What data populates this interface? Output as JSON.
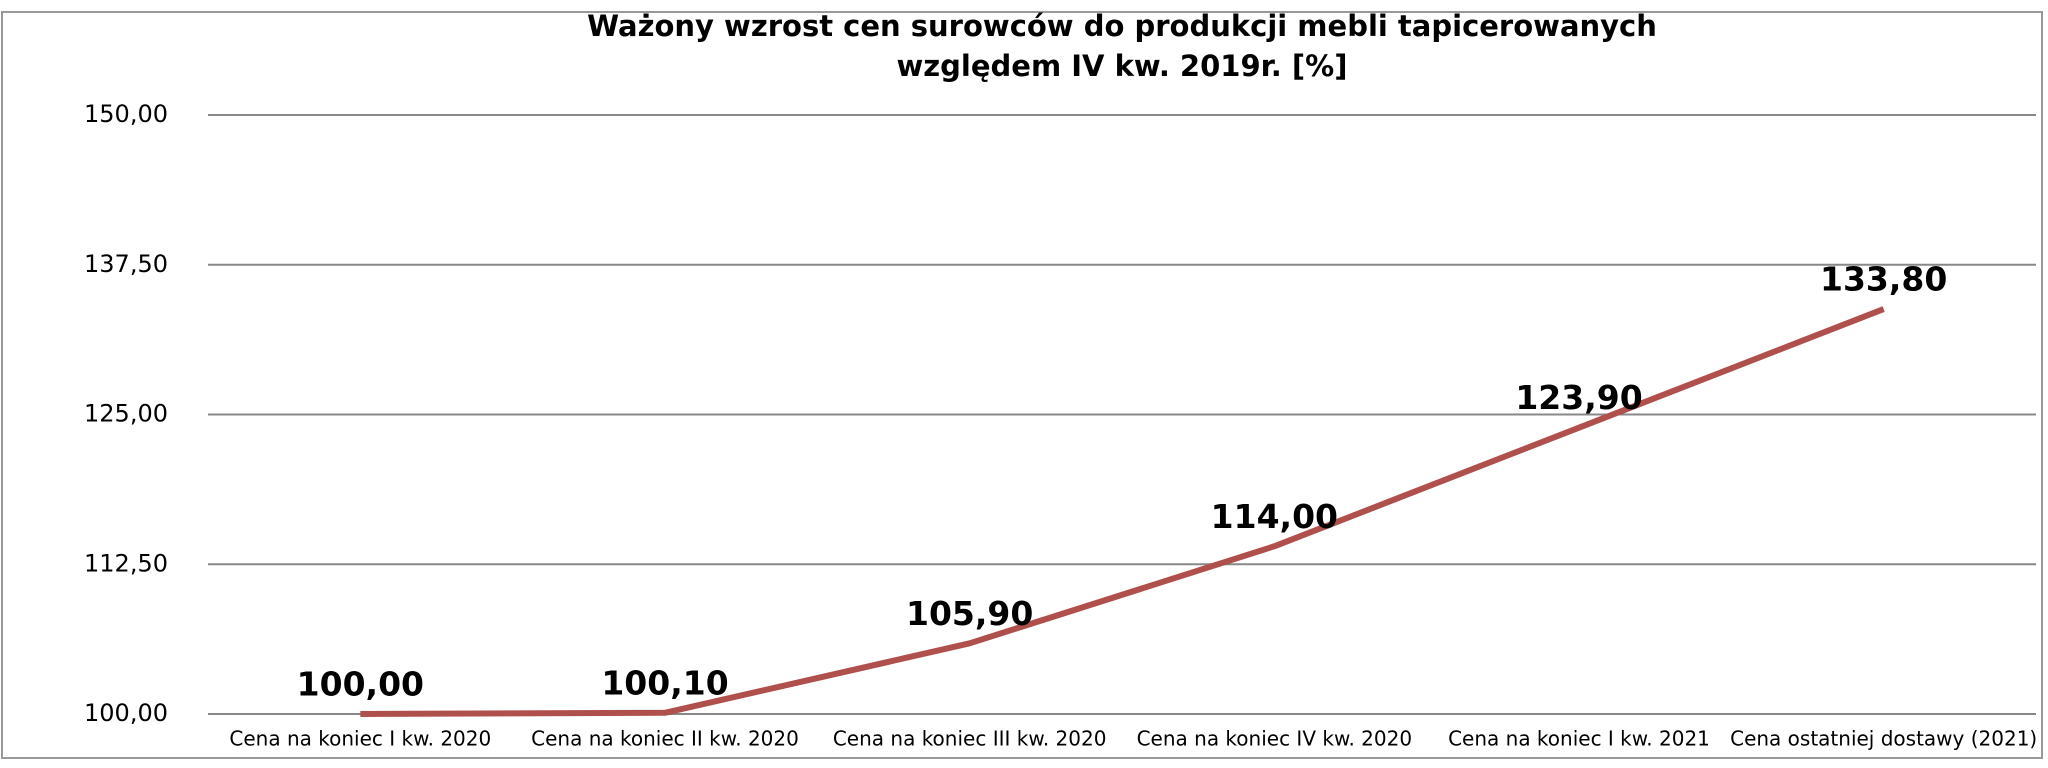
{
  "chart_data": {
    "type": "line",
    "title": "Ważony wzrost cen surowców do produkcji mebli tapicerowanych względem IV kw. 2019r. [%]",
    "categories": [
      "Cena na koniec I kw. 2020",
      "Cena na koniec II kw. 2020",
      "Cena na koniec III kw. 2020",
      "Cena na koniec IV kw. 2020",
      "Cena na koniec I kw. 2021",
      "Cena ostatniej dostawy (2021)"
    ],
    "series": [
      {
        "color": "#b0504d",
        "values": [
          100,
          100.1,
          105.9,
          114,
          123.9,
          133.8
        ],
        "value_labels": [
          "100,00",
          "100,10",
          "105,90",
          "114,00",
          "123,90",
          "133,80"
        ]
      }
    ],
    "ylim": [
      100,
      150
    ],
    "yticks": [
      {
        "value": 100,
        "label": "100,00"
      },
      {
        "value": 112.5,
        "label": "112,50"
      },
      {
        "value": 125,
        "label": "125,00"
      },
      {
        "value": 137.5,
        "label": "137,50"
      },
      {
        "value": 150,
        "label": "150,00"
      }
    ],
    "grid": true
  }
}
